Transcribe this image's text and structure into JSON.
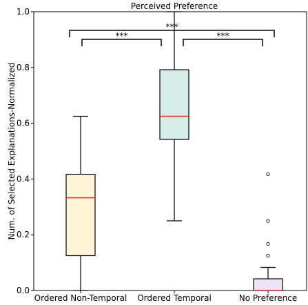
{
  "chart_data": {
    "type": "box",
    "title": "Perceived Preference",
    "xlabel": "",
    "ylabel": "Num. of Selected Explanations-Normalized",
    "ylim": [
      0,
      1.0
    ],
    "yticks": [
      "0.0",
      "0.2",
      "0.4",
      "0.6",
      "0.8",
      "1.0"
    ],
    "categories": [
      "Ordered Non-Temporal",
      "Ordered Temporal",
      "No Preference"
    ],
    "boxes": [
      {
        "category": "Ordered Non-Temporal",
        "whisker_low": 0.0,
        "q1": 0.125,
        "median": 0.333,
        "q3": 0.417,
        "whisker_high": 0.625,
        "outliers": [],
        "fill": "#fdf5d6"
      },
      {
        "category": "Ordered Temporal",
        "whisker_low": 0.25,
        "q1": 0.542,
        "median": 0.625,
        "q3": 0.792,
        "whisker_high": 1.0,
        "outliers": [],
        "fill": "#d6ece8"
      },
      {
        "category": "No Preference",
        "whisker_low": 0.0,
        "q1": 0.0,
        "median": 0.0,
        "q3": 0.042,
        "whisker_high": 0.083,
        "outliers": [
          0.125,
          0.167,
          0.25,
          0.417
        ],
        "fill": "#eee3f3"
      }
    ],
    "significance": [
      {
        "from": 0,
        "to": 1,
        "label": "***"
      },
      {
        "from": 0,
        "to": 2,
        "label": "***"
      },
      {
        "from": 1,
        "to": 2,
        "label": "***"
      }
    ],
    "colors": {
      "median": "#e0302a",
      "whisker": "#000000",
      "box_edge": "#000000"
    }
  }
}
